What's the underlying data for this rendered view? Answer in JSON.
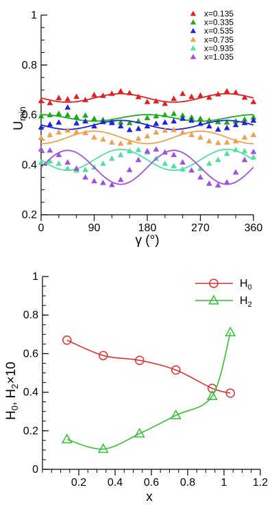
{
  "chart_data": [
    {
      "type": "scatter",
      "title": "",
      "xlabel": "γ (°)",
      "ylabel": "U",
      "ylabel_sub": "min",
      "xlim": [
        0,
        360
      ],
      "ylim": [
        0.2,
        1
      ],
      "xticks": [
        0,
        90,
        180,
        270,
        360
      ],
      "xtick_labels": [
        "0",
        "90",
        "180",
        "270",
        "360"
      ],
      "yticks": [
        0.2,
        0.4,
        0.6,
        0.8,
        1
      ],
      "ytick_labels": [
        "0.2",
        "0.4",
        "0.6",
        "0.8",
        "1"
      ],
      "x_minor_step": 30,
      "y_minor_step": 0.05,
      "grid": false,
      "legend_position": "top-right",
      "series": [
        {
          "name": "x=0.135",
          "color": "#e02020",
          "mean": 0.668,
          "amp": 0.017,
          "phase": 315,
          "points": [
            [
              0,
              0.656
            ],
            [
              15,
              0.648
            ],
            [
              30,
              0.668
            ],
            [
              45,
              0.663
            ],
            [
              60,
              0.673
            ],
            [
              75,
              0.66
            ],
            [
              90,
              0.68
            ],
            [
              105,
              0.677
            ],
            [
              120,
              0.685
            ],
            [
              135,
              0.695
            ],
            [
              150,
              0.688
            ],
            [
              165,
              0.672
            ],
            [
              180,
              0.652
            ],
            [
              195,
              0.655
            ],
            [
              210,
              0.645
            ],
            [
              225,
              0.665
            ],
            [
              240,
              0.685
            ],
            [
              255,
              0.673
            ],
            [
              270,
              0.678
            ],
            [
              285,
              0.67
            ],
            [
              300,
              0.683
            ],
            [
              315,
              0.695
            ],
            [
              330,
              0.69
            ],
            [
              345,
              0.67
            ],
            [
              360,
              0.652
            ]
          ]
        },
        {
          "name": "x=0.335",
          "color": "#1aaa1a",
          "mean": 0.588,
          "amp": 0.013,
          "phase": 0,
          "points": [
            [
              0,
              0.595
            ],
            [
              15,
              0.6
            ],
            [
              30,
              0.605
            ],
            [
              45,
              0.6
            ],
            [
              60,
              0.592
            ],
            [
              75,
              0.598
            ],
            [
              90,
              0.585
            ],
            [
              105,
              0.58
            ],
            [
              120,
              0.575
            ],
            [
              135,
              0.57
            ],
            [
              150,
              0.568
            ],
            [
              165,
              0.575
            ],
            [
              180,
              0.588
            ],
            [
              195,
              0.595
            ],
            [
              210,
              0.6
            ],
            [
              225,
              0.605
            ],
            [
              240,
              0.598
            ],
            [
              255,
              0.59
            ],
            [
              270,
              0.585
            ],
            [
              285,
              0.578
            ],
            [
              300,
              0.572
            ],
            [
              315,
              0.57
            ],
            [
              330,
              0.575
            ],
            [
              345,
              0.582
            ],
            [
              360,
              0.59
            ]
          ]
        },
        {
          "name": "x=0.535",
          "color": "#2222dd",
          "mean": 0.56,
          "amp": 0.018,
          "phase": 315,
          "points": [
            [
              0,
              0.55
            ],
            [
              15,
              0.562
            ],
            [
              30,
              0.57
            ],
            [
              45,
              0.63
            ],
            [
              60,
              0.567
            ],
            [
              75,
              0.575
            ],
            [
              90,
              0.555
            ],
            [
              105,
              0.572
            ],
            [
              120,
              0.568
            ],
            [
              135,
              0.555
            ],
            [
              150,
              0.54
            ],
            [
              165,
              0.545
            ],
            [
              180,
              0.555
            ],
            [
              195,
              0.565
            ],
            [
              210,
              0.57
            ],
            [
              225,
              0.575
            ],
            [
              240,
              0.585
            ],
            [
              255,
              0.578
            ],
            [
              270,
              0.565
            ],
            [
              285,
              0.555
            ],
            [
              300,
              0.542
            ],
            [
              315,
              0.548
            ],
            [
              330,
              0.56
            ],
            [
              345,
              0.568
            ],
            [
              360,
              0.578
            ]
          ]
        },
        {
          "name": "x=0.735",
          "color": "#f0a050",
          "mean": 0.51,
          "amp": 0.025,
          "phase": 90,
          "points": [
            [
              0,
              0.508
            ],
            [
              15,
              0.52
            ],
            [
              30,
              0.53
            ],
            [
              45,
              0.538
            ],
            [
              60,
              0.532
            ],
            [
              75,
              0.528
            ],
            [
              90,
              0.51
            ],
            [
              105,
              0.502
            ],
            [
              120,
              0.49
            ],
            [
              135,
              0.485
            ],
            [
              150,
              0.49
            ],
            [
              165,
              0.505
            ],
            [
              180,
              0.515
            ],
            [
              195,
              0.53
            ],
            [
              210,
              0.538
            ],
            [
              225,
              0.54
            ],
            [
              240,
              0.53
            ],
            [
              255,
              0.52
            ],
            [
              270,
              0.51
            ],
            [
              285,
              0.495
            ],
            [
              300,
              0.488
            ],
            [
              315,
              0.49
            ],
            [
              330,
              0.495
            ],
            [
              345,
              0.51
            ],
            [
              360,
              0.52
            ]
          ]
        },
        {
          "name": "x=0.935",
          "color": "#50e0a0",
          "mean": 0.42,
          "amp": 0.042,
          "phase": 135,
          "points": [
            [
              0,
              0.41
            ],
            [
              15,
              0.415
            ],
            [
              30,
              0.405
            ],
            [
              45,
              0.385
            ],
            [
              60,
              0.378
            ],
            [
              75,
              0.38
            ],
            [
              90,
              0.39
            ],
            [
              105,
              0.405
            ],
            [
              120,
              0.425
            ],
            [
              135,
              0.44
            ],
            [
              150,
              0.455
            ],
            [
              165,
              0.46
            ],
            [
              180,
              0.45
            ],
            [
              195,
              0.425
            ],
            [
              210,
              0.405
            ],
            [
              225,
              0.395
            ],
            [
              240,
              0.382
            ],
            [
              255,
              0.378
            ],
            [
              270,
              0.385
            ],
            [
              285,
              0.405
            ],
            [
              300,
              0.42
            ],
            [
              315,
              0.445
            ],
            [
              330,
              0.46
            ],
            [
              345,
              0.455
            ],
            [
              360,
              0.43
            ]
          ]
        },
        {
          "name": "x=1.035",
          "color": "#a050e0",
          "mean": 0.39,
          "amp": 0.068,
          "phase": 45,
          "points": [
            [
              0,
              0.462
            ],
            [
              15,
              0.458
            ],
            [
              30,
              0.44
            ],
            [
              45,
              0.41
            ],
            [
              60,
              0.385
            ],
            [
              75,
              0.35
            ],
            [
              90,
              0.335
            ],
            [
              105,
              0.328
            ],
            [
              120,
              0.32
            ],
            [
              135,
              0.34
            ],
            [
              150,
              0.38
            ],
            [
              165,
              0.42
            ],
            [
              180,
              0.455
            ],
            [
              195,
              0.462
            ],
            [
              210,
              0.45
            ],
            [
              225,
              0.44
            ],
            [
              240,
              0.41
            ],
            [
              255,
              0.378
            ],
            [
              270,
              0.35
            ],
            [
              285,
              0.325
            ],
            [
              300,
              0.318
            ],
            [
              315,
              0.33
            ],
            [
              330,
              0.37
            ],
            [
              345,
              0.42
            ],
            [
              360,
              0.452
            ]
          ]
        }
      ]
    },
    {
      "type": "line",
      "title": "",
      "xlabel": "x",
      "ylabel_parts": [
        "H",
        "0",
        ", H",
        "2",
        "×10"
      ],
      "xlim": [
        0,
        1.2
      ],
      "ylim": [
        0,
        1
      ],
      "xticks": [
        0.2,
        0.4,
        0.6,
        0.8,
        1,
        1.2
      ],
      "xtick_labels": [
        "0.2",
        "0.4",
        "0.6",
        "0.8",
        "1",
        "1.2"
      ],
      "yticks": [
        0,
        0.2,
        0.4,
        0.6,
        0.8,
        1
      ],
      "ytick_labels": [
        "0",
        "0.2",
        "0.4",
        "0.6",
        "0.8",
        "1"
      ],
      "x_minor_step": 0.05,
      "y_minor_step": 0.05,
      "grid": false,
      "legend_position": "top-right",
      "series": [
        {
          "name": "H",
          "name_sub": "0",
          "color": "#e03030",
          "marker": "circle",
          "x": [
            0.135,
            0.335,
            0.535,
            0.735,
            0.935,
            1.035
          ],
          "y": [
            0.67,
            0.59,
            0.565,
            0.515,
            0.42,
            0.395
          ]
        },
        {
          "name": "H",
          "name_sub": "2",
          "color": "#30c030",
          "marker": "triangle",
          "x": [
            0.135,
            0.335,
            0.535,
            0.735,
            0.935,
            1.035
          ],
          "y": [
            0.155,
            0.105,
            0.185,
            0.28,
            0.38,
            0.71
          ]
        }
      ]
    }
  ]
}
